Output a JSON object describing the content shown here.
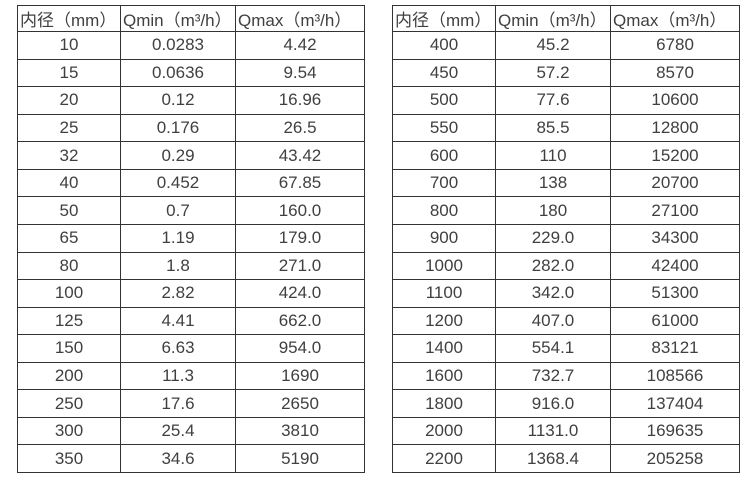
{
  "page": {
    "background_color": "#ffffff",
    "border_color": "#333333",
    "text_color": "#404040"
  },
  "tables": [
    {
      "name": "flow-range-small-diameters",
      "headers": [
        "内径（mm）",
        "Qmin（m³/h）",
        "Qmax（m³/h）"
      ],
      "rows": [
        [
          "10",
          "0.0283",
          "4.42"
        ],
        [
          "15",
          "0.0636",
          "9.54"
        ],
        [
          "20",
          "0.12",
          "16.96"
        ],
        [
          "25",
          "0.176",
          "26.5"
        ],
        [
          "32",
          "0.29",
          "43.42"
        ],
        [
          "40",
          "0.452",
          "67.85"
        ],
        [
          "50",
          "0.7",
          "160.0"
        ],
        [
          "65",
          "1.19",
          "179.0"
        ],
        [
          "80",
          "1.8",
          "271.0"
        ],
        [
          "100",
          "2.82",
          "424.0"
        ],
        [
          "125",
          "4.41",
          "662.0"
        ],
        [
          "150",
          "6.63",
          "954.0"
        ],
        [
          "200",
          "11.3",
          "1690"
        ],
        [
          "250",
          "17.6",
          "2650"
        ],
        [
          "300",
          "25.4",
          "3810"
        ],
        [
          "350",
          "34.6",
          "5190"
        ]
      ]
    },
    {
      "name": "flow-range-large-diameters",
      "headers": [
        "内径（mm）",
        "Qmin（m³/h）",
        "Qmax（m³/h）"
      ],
      "rows": [
        [
          "400",
          "45.2",
          "6780"
        ],
        [
          "450",
          "57.2",
          "8570"
        ],
        [
          "500",
          "77.6",
          "10600"
        ],
        [
          "550",
          "85.5",
          "12800"
        ],
        [
          "600",
          "110",
          "15200"
        ],
        [
          "700",
          "138",
          "20700"
        ],
        [
          "800",
          "180",
          "27100"
        ],
        [
          "900",
          "229.0",
          "34300"
        ],
        [
          "1000",
          "282.0",
          "42400"
        ],
        [
          "1100",
          "342.0",
          "51300"
        ],
        [
          "1200",
          "407.0",
          "61000"
        ],
        [
          "1400",
          "554.1",
          "83121"
        ],
        [
          "1600",
          "732.7",
          "108566"
        ],
        [
          "1800",
          "916.0",
          "137404"
        ],
        [
          "2000",
          "1131.0",
          "169635"
        ],
        [
          "2200",
          "1368.4",
          "205258"
        ]
      ]
    }
  ]
}
